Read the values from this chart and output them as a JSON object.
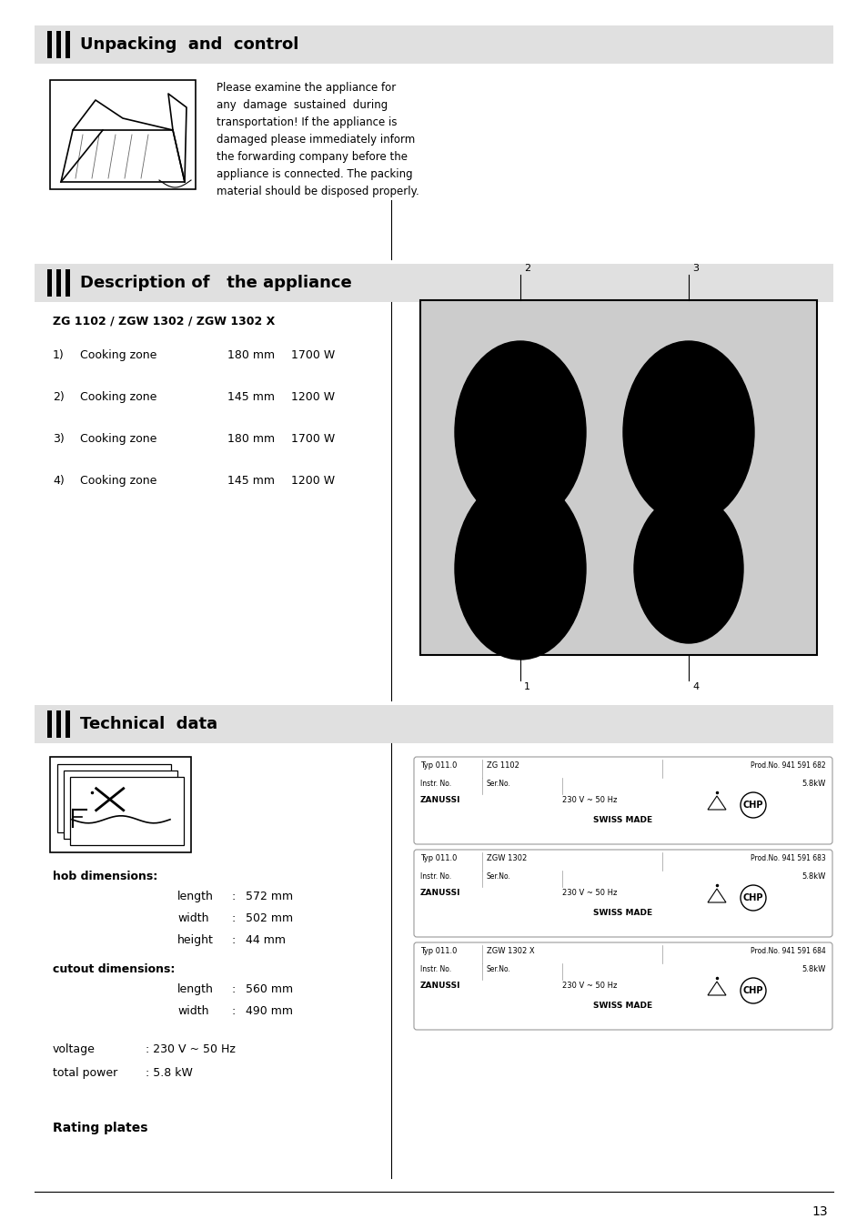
{
  "page_bg": "#ffffff",
  "page_number": "13",
  "section1_title": "Unpacking  and  control",
  "section1_bg": "#e0e0e0",
  "section1_text": "Please examine the appliance for\nany  damage  sustained  during\ntransportation! If the appliance is\ndamaged please immediately inform\nthe forwarding company before the\nappliance is connected. The packing\nmaterial should be disposed properly.",
  "section2_title": "Description of   the appliance",
  "section2_bg": "#e0e0e0",
  "section2_subtitle": "ZG 1102 / ZGW 1302 / ZGW 1302 X",
  "cooking_zones": [
    {
      "num": "1)",
      "label": "Cooking zone",
      "size": "180 mm",
      "power": "1700 W"
    },
    {
      "num": "2)",
      "label": "Cooking zone",
      "size": "145 mm",
      "power": "1200 W"
    },
    {
      "num": "3)",
      "label": "Cooking zone",
      "size": "180 mm",
      "power": "1700 W"
    },
    {
      "num": "4)",
      "label": "Cooking zone",
      "size": "145 mm",
      "power": "1200 W"
    }
  ],
  "section3_title": "Technical  data",
  "section3_bg": "#e0e0e0",
  "hob_dims_label": "hob dimensions:",
  "hob_dims": [
    [
      "length",
      ":",
      "572 mm"
    ],
    [
      "width",
      ":",
      "502 mm"
    ],
    [
      "height",
      ":",
      "44 mm"
    ]
  ],
  "cutout_dims_label": "cutout dimensions:",
  "cutout_dims": [
    [
      "length",
      ":",
      "560 mm"
    ],
    [
      "width",
      ":",
      "490 mm"
    ]
  ],
  "voltage_label": "voltage",
  "voltage_val": ": 230 V ~ 50 Hz",
  "power_label": "total power",
  "power_val": ": 5.8 kW",
  "rating_plates_label": "Rating plates",
  "rating_plates": [
    {
      "typ": "Typ 011.0",
      "model": "ZG 1102",
      "prod": "Prod.No. 941 591 682",
      "power": "5.8kW"
    },
    {
      "typ": "Typ 011.0",
      "model": "ZGW 1302",
      "prod": "Prod.No. 941 591 683",
      "power": "5.8kW"
    },
    {
      "typ": "Typ 011.0",
      "model": "ZGW 1302 X",
      "prod": "Prod.No. 941 591 684",
      "power": "5.8kW"
    }
  ]
}
